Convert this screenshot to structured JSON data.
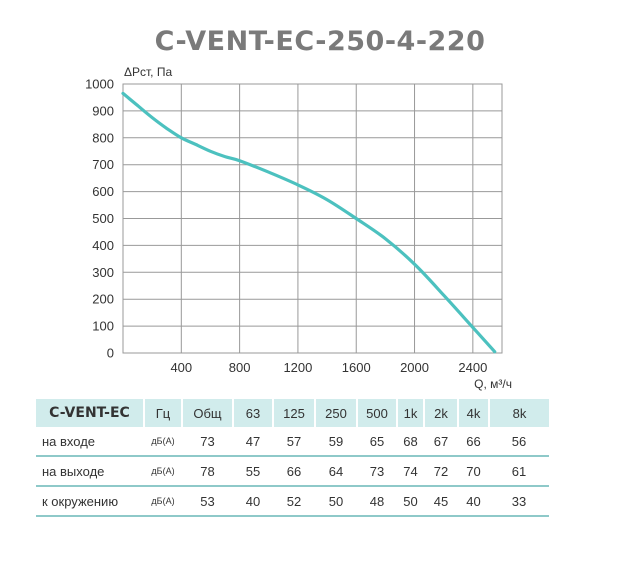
{
  "title": "C-VENT-EC-250-4-220",
  "chart_data": {
    "type": "line",
    "ylabel": "ΔPст, Па",
    "xlabel": "Q, м³/ч",
    "xlim": [
      0,
      2600
    ],
    "ylim": [
      0,
      1000
    ],
    "x_ticks": [
      "400",
      "800",
      "1200",
      "1600",
      "2000",
      "2400"
    ],
    "y_ticks": [
      "0",
      "100",
      "200",
      "300",
      "400",
      "500",
      "600",
      "700",
      "800",
      "900",
      "1000"
    ],
    "grid": true,
    "series": [
      {
        "x": [
          0,
          100,
          200,
          300,
          400,
          500,
          600,
          700,
          800,
          1000,
          1200,
          1400,
          1600,
          1800,
          2000,
          2200,
          2400,
          2550
        ],
        "y": [
          965,
          920,
          875,
          835,
          800,
          775,
          750,
          730,
          715,
          672,
          625,
          570,
          500,
          425,
          330,
          215,
          95,
          5
        ],
        "color": "#4cc1bf"
      }
    ]
  },
  "table": {
    "model": "C-VENT-EC",
    "hz_label": "Гц",
    "columns": [
      "Общ",
      "63",
      "125",
      "250",
      "500",
      "1k",
      "2k",
      "4k",
      "8k"
    ],
    "rows": [
      {
        "label": "на входе",
        "unit": "дБ(А)",
        "values": [
          "73",
          "47",
          "57",
          "59",
          "65",
          "68",
          "67",
          "66",
          "56"
        ]
      },
      {
        "label": "на выходе",
        "unit": "дБ(А)",
        "values": [
          "78",
          "55",
          "66",
          "64",
          "73",
          "74",
          "72",
          "70",
          "61"
        ]
      },
      {
        "label": "к окружению",
        "unit": "дБ(А)",
        "values": [
          "53",
          "40",
          "52",
          "50",
          "48",
          "50",
          "45",
          "40",
          "33"
        ]
      }
    ]
  },
  "colors": {
    "curve": "#4cc1bf",
    "header_bg": "#d1ecec",
    "row_line": "#8ec9c9",
    "grid": "#999999"
  }
}
